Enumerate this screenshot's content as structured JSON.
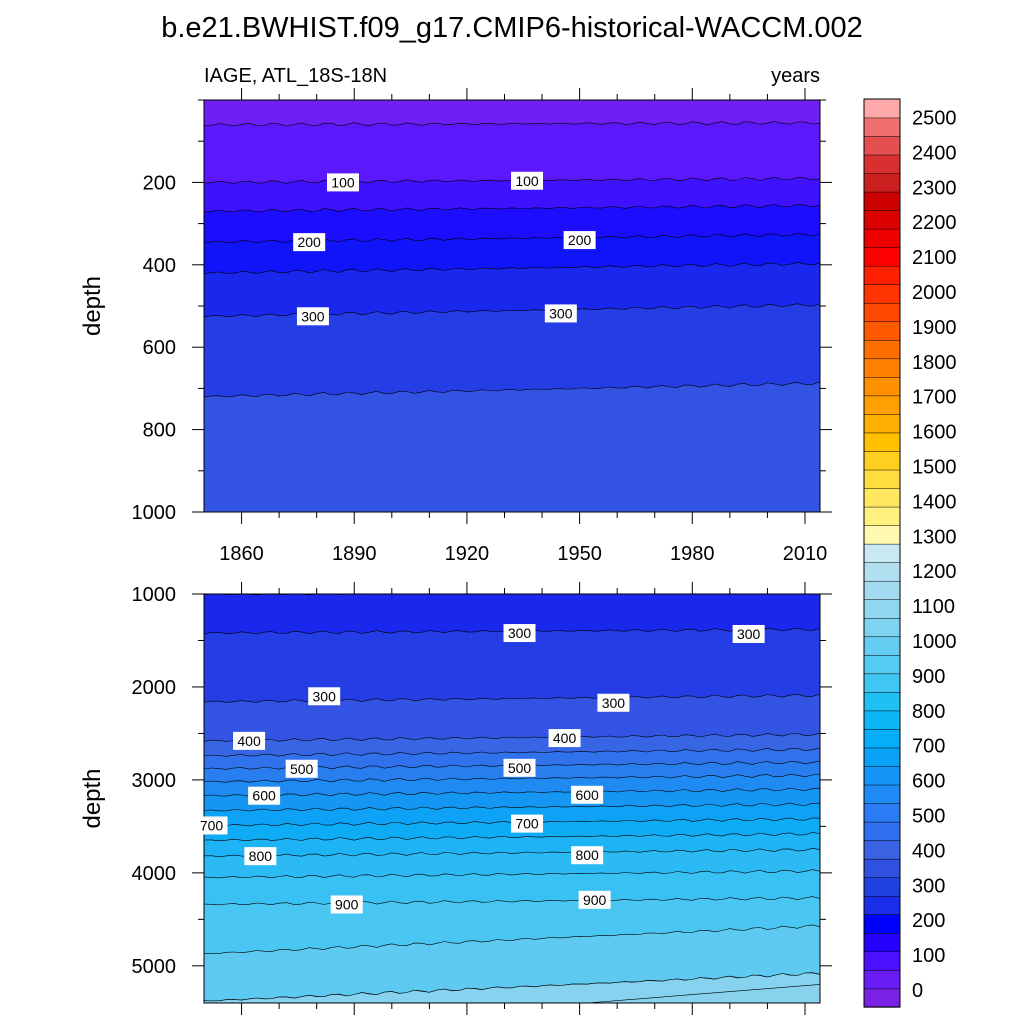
{
  "chart_data": {
    "type": "contour",
    "title": "b.e21.BWHIST.f09_g17.CMIP6-historical-WACCM.002",
    "left_label": "IAGE, ATL_18S-18N",
    "right_label": "years",
    "ylabel": "depth",
    "x_ticks": [
      1860,
      1890,
      1920,
      1950,
      1980,
      2010
    ],
    "xlim": [
      1850,
      2014
    ],
    "panels": [
      {
        "name": "upper",
        "ylim": [
          0,
          1000
        ],
        "y_ticks": [
          200,
          400,
          600,
          800,
          1000
        ],
        "contour_levels": [
          50,
          100,
          150,
          200,
          250,
          300,
          350
        ],
        "contour_labels": [
          {
            "text": "100",
            "x": 1887,
            "y": 200
          },
          {
            "text": "100",
            "x": 1936,
            "y": 196
          },
          {
            "text": "200",
            "x": 1878,
            "y": 345
          },
          {
            "text": "200",
            "x": 1950,
            "y": 340
          },
          {
            "text": "300",
            "x": 1879,
            "y": 525
          },
          {
            "text": "300",
            "x": 1945,
            "y": 518
          }
        ]
      },
      {
        "name": "lower",
        "ylim": [
          1000,
          5400
        ],
        "y_ticks": [
          1000,
          2000,
          3000,
          4000,
          5000
        ],
        "contour_levels": [
          250,
          300,
          350,
          400,
          450,
          500,
          550,
          600,
          650,
          700,
          750,
          800,
          850,
          900,
          950,
          1000,
          1050
        ],
        "contour_labels": [
          {
            "text": "300",
            "x": 1934,
            "y": 1420
          },
          {
            "text": "300",
            "x": 1995,
            "y": 1430
          },
          {
            "text": "300",
            "x": 1882,
            "y": 2100
          },
          {
            "text": "300",
            "x": 1959,
            "y": 2170
          },
          {
            "text": "400",
            "x": 1862,
            "y": 2580
          },
          {
            "text": "400",
            "x": 1946,
            "y": 2550
          },
          {
            "text": "500",
            "x": 1876,
            "y": 2880
          },
          {
            "text": "500",
            "x": 1934,
            "y": 2870
          },
          {
            "text": "600",
            "x": 1866,
            "y": 3170
          },
          {
            "text": "600",
            "x": 1952,
            "y": 3160
          },
          {
            "text": "700",
            "x": 1852,
            "y": 3490
          },
          {
            "text": "700",
            "x": 1936,
            "y": 3470
          },
          {
            "text": "800",
            "x": 1865,
            "y": 3820
          },
          {
            "text": "800",
            "x": 1952,
            "y": 3810
          },
          {
            "text": "900",
            "x": 1888,
            "y": 4340
          },
          {
            "text": "900",
            "x": 1954,
            "y": 4290
          }
        ]
      }
    ],
    "colorbar": {
      "tick_labels": [
        "0",
        "100",
        "200",
        "300",
        "400",
        "500",
        "600",
        "700",
        "800",
        "900",
        "1000",
        "1100",
        "1200",
        "1300",
        "1400",
        "1500",
        "1600",
        "1700",
        "1800",
        "1900",
        "2000",
        "2100",
        "2200",
        "2300",
        "2400",
        "2500"
      ],
      "colors": [
        "#7a21e6",
        "#6a1cf5",
        "#4a10ff",
        "#2600ff",
        "#0000ff",
        "#1a2de8",
        "#2040e0",
        "#3050e0",
        "#3a62e2",
        "#2f6fee",
        "#2a7cf5",
        "#1f8bf7",
        "#1495f8",
        "#0aa2f7",
        "#05aef8",
        "#0ab6f5",
        "#1fc0f4",
        "#40c6f2",
        "#55cdf2",
        "#66cdf2",
        "#7dd3f0",
        "#90d8f0",
        "#a4daf0",
        "#b3e0f0",
        "#c8e8f4",
        "#fff8b0",
        "#fff080",
        "#ffe860",
        "#ffdc40",
        "#ffd020",
        "#ffc000",
        "#ffb000",
        "#ffa000",
        "#ff9000",
        "#ff8000",
        "#ff6e00",
        "#ff5a00",
        "#ff4800",
        "#ff3400",
        "#ff2000",
        "#ff0000",
        "#ee0000",
        "#dd0000",
        "#cc0000",
        "#cc2020",
        "#d83030",
        "#e45050",
        "#f07070",
        "#ffaaaa"
      ]
    }
  }
}
